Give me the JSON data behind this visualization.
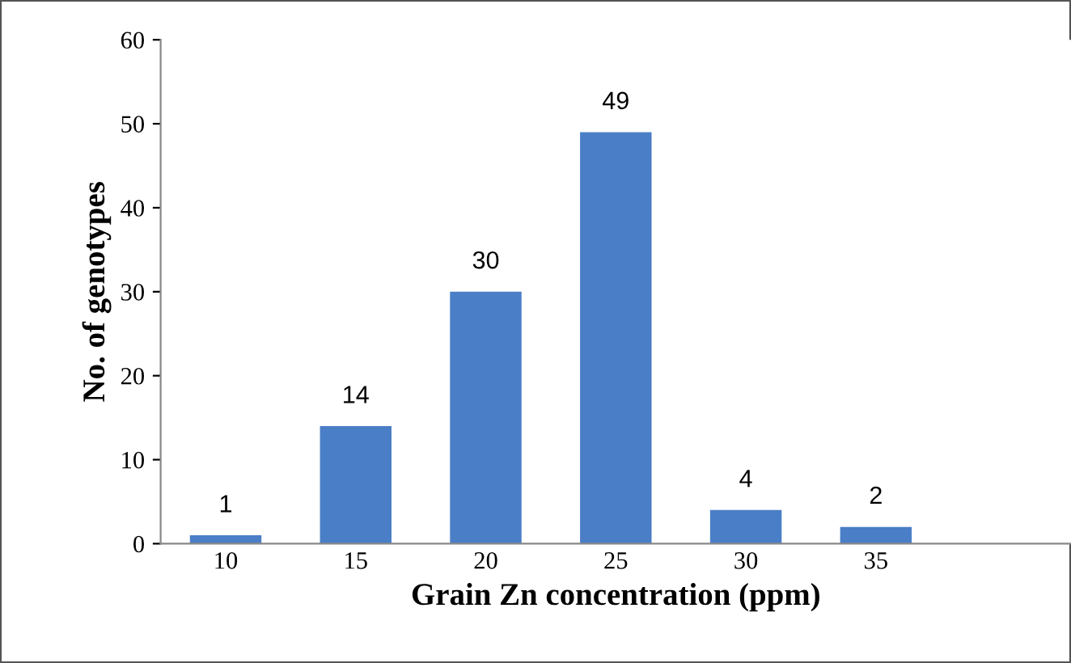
{
  "chart_data": {
    "type": "bar",
    "xlabel": "Grain Zn concentration (ppm)",
    "ylabel": "No. of genotypes",
    "categories": [
      "10",
      "15",
      "20",
      "25",
      "30",
      "35",
      null
    ],
    "values": [
      1,
      14,
      30,
      49,
      4,
      2,
      null
    ],
    "color": "#4a7ec6",
    "ylim": [
      0,
      60
    ],
    "yticks": [
      0,
      10,
      20,
      30,
      40,
      50,
      60
    ],
    "grid": false,
    "data_labels": true
  }
}
